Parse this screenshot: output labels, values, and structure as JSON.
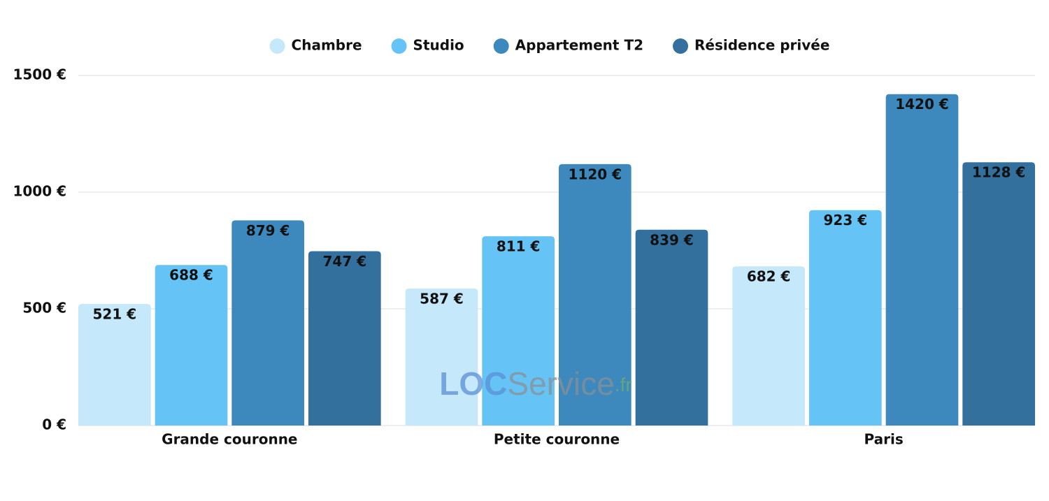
{
  "chart_data": {
    "type": "bar",
    "categories": [
      "Grande couronne",
      "Petite couronne",
      "Paris"
    ],
    "series": [
      {
        "name": "Chambre",
        "color": "#c5e8fa",
        "label_color": "#111111",
        "values": [
          521,
          587,
          682
        ],
        "value_labels": [
          "521 €",
          "587 €",
          "682 €"
        ]
      },
      {
        "name": "Studio",
        "color": "#65c3f5",
        "label_color": "#111111",
        "values": [
          688,
          811,
          923
        ],
        "value_labels": [
          "688 €",
          "811 €",
          "923 €"
        ]
      },
      {
        "name": "Appartement T2",
        "color": "#3d89bd",
        "label_color": "#ffffff",
        "values": [
          879,
          1120,
          1420
        ],
        "value_labels": [
          "879 €",
          "1120 €",
          "1420 €"
        ]
      },
      {
        "name": "Résidence privée",
        "color": "#33709e",
        "label_color": "#ffffff",
        "values": [
          747,
          839,
          1128
        ],
        "value_labels": [
          "747 €",
          "839 €",
          "1128 €"
        ]
      }
    ],
    "ylim": [
      0,
      1500
    ],
    "yticks": [
      {
        "value": 0,
        "label": "0 €"
      },
      {
        "value": 500,
        "label": "500 €"
      },
      {
        "value": 1000,
        "label": "1000 €"
      },
      {
        "value": 1500,
        "label": "1500 €"
      }
    ],
    "grid": true,
    "legend": "top",
    "watermark": [
      "LOC",
      "Service",
      ".fr"
    ]
  }
}
